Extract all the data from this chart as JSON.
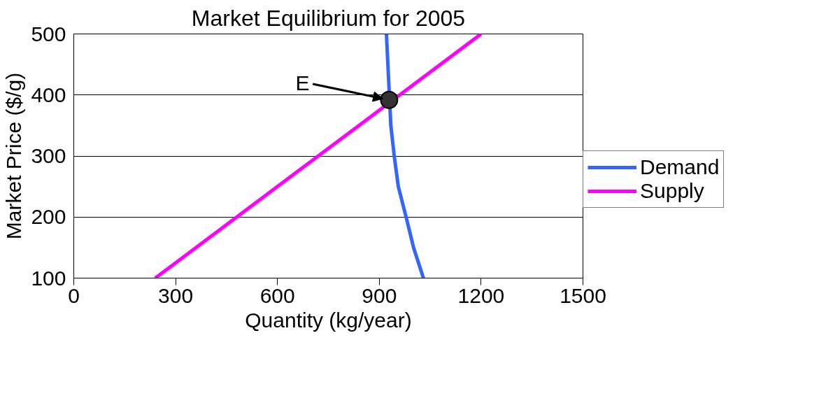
{
  "chart_data": {
    "type": "line",
    "title": "Market Equilibrium for 2005",
    "xlabel": "Quantity (kg/year)",
    "ylabel": "Market Price ($/g)",
    "xlim": [
      0,
      1500
    ],
    "xticks": [
      0,
      300,
      600,
      900,
      1200,
      1500
    ],
    "ylim": [
      100,
      500
    ],
    "yticks": [
      100,
      200,
      300,
      400,
      500
    ],
    "grid": "y",
    "legend": "right",
    "marker": "none",
    "line_style": "solid",
    "series": [
      {
        "name": "Demand",
        "color": "#3366ff",
        "x": [
          1030,
          1001,
          979,
          956,
          944,
          934,
          921
        ],
        "values": [
          100,
          150,
          200,
          250,
          300,
          350,
          500
        ]
      },
      {
        "name": "Supply",
        "color": "#ff00ff",
        "x": [
          240,
          1200
        ],
        "values": [
          100,
          500
        ]
      },
      {
        "type": "scatter",
        "marker": "circle",
        "color": "#333333",
        "x": [
          929
        ],
        "values": [
          392
        ]
      }
    ],
    "annotations": [
      {
        "text": "E",
        "x": 929,
        "y": 392
      }
    ]
  }
}
